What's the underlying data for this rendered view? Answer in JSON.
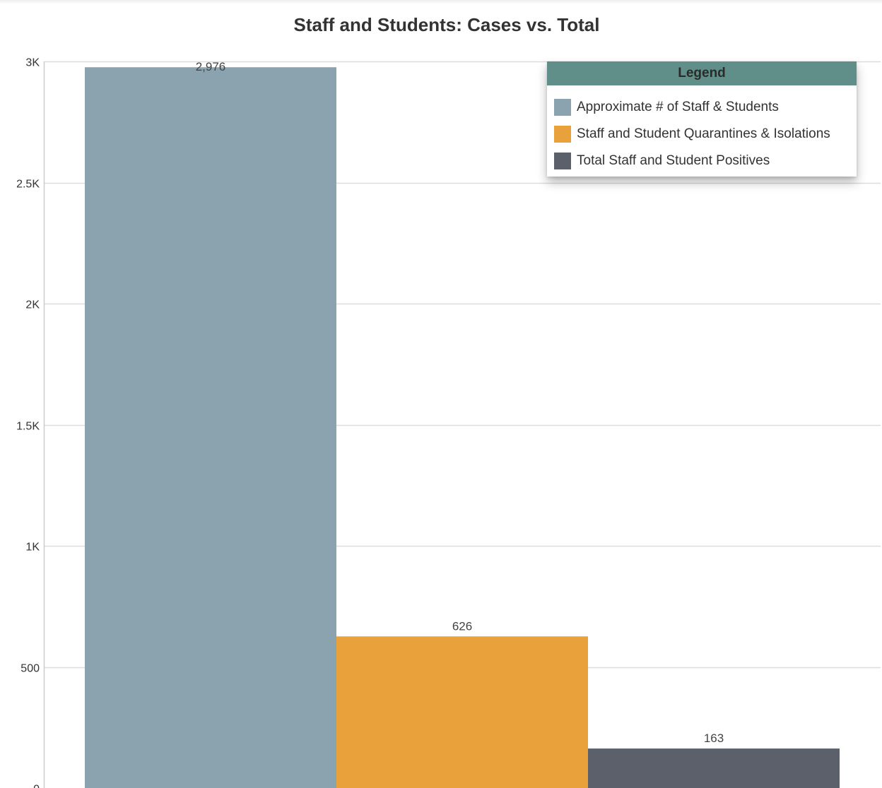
{
  "chart_data": {
    "type": "bar",
    "title": "Staff and Students: Cases vs. Total",
    "xlabel": "",
    "ylabel": "",
    "ylim": [
      0,
      3000
    ],
    "yticks": [
      {
        "value": 0,
        "label": "0"
      },
      {
        "value": 500,
        "label": "500"
      },
      {
        "value": 1000,
        "label": "1K"
      },
      {
        "value": 1500,
        "label": "1.5K"
      },
      {
        "value": 2000,
        "label": "2K"
      },
      {
        "value": 2500,
        "label": "2.5K"
      },
      {
        "value": 3000,
        "label": "3K"
      }
    ],
    "grid": true,
    "legend_position": "top-right",
    "legend_title": "Legend",
    "series": [
      {
        "name": "Approximate # of Staff & Students",
        "value": 2976,
        "label": "2,976",
        "color": "#8aa3af"
      },
      {
        "name": "Staff and Student Quarantines & Isolations",
        "value": 626,
        "label": "626",
        "color": "#e9a23b"
      },
      {
        "name": "Total Staff and Student Positives",
        "value": 163,
        "label": "163",
        "color": "#5b606b"
      }
    ]
  },
  "colors": {
    "legend_header": "#5f8f88",
    "gridline": "#dddddd",
    "axis": "#cccccc"
  }
}
